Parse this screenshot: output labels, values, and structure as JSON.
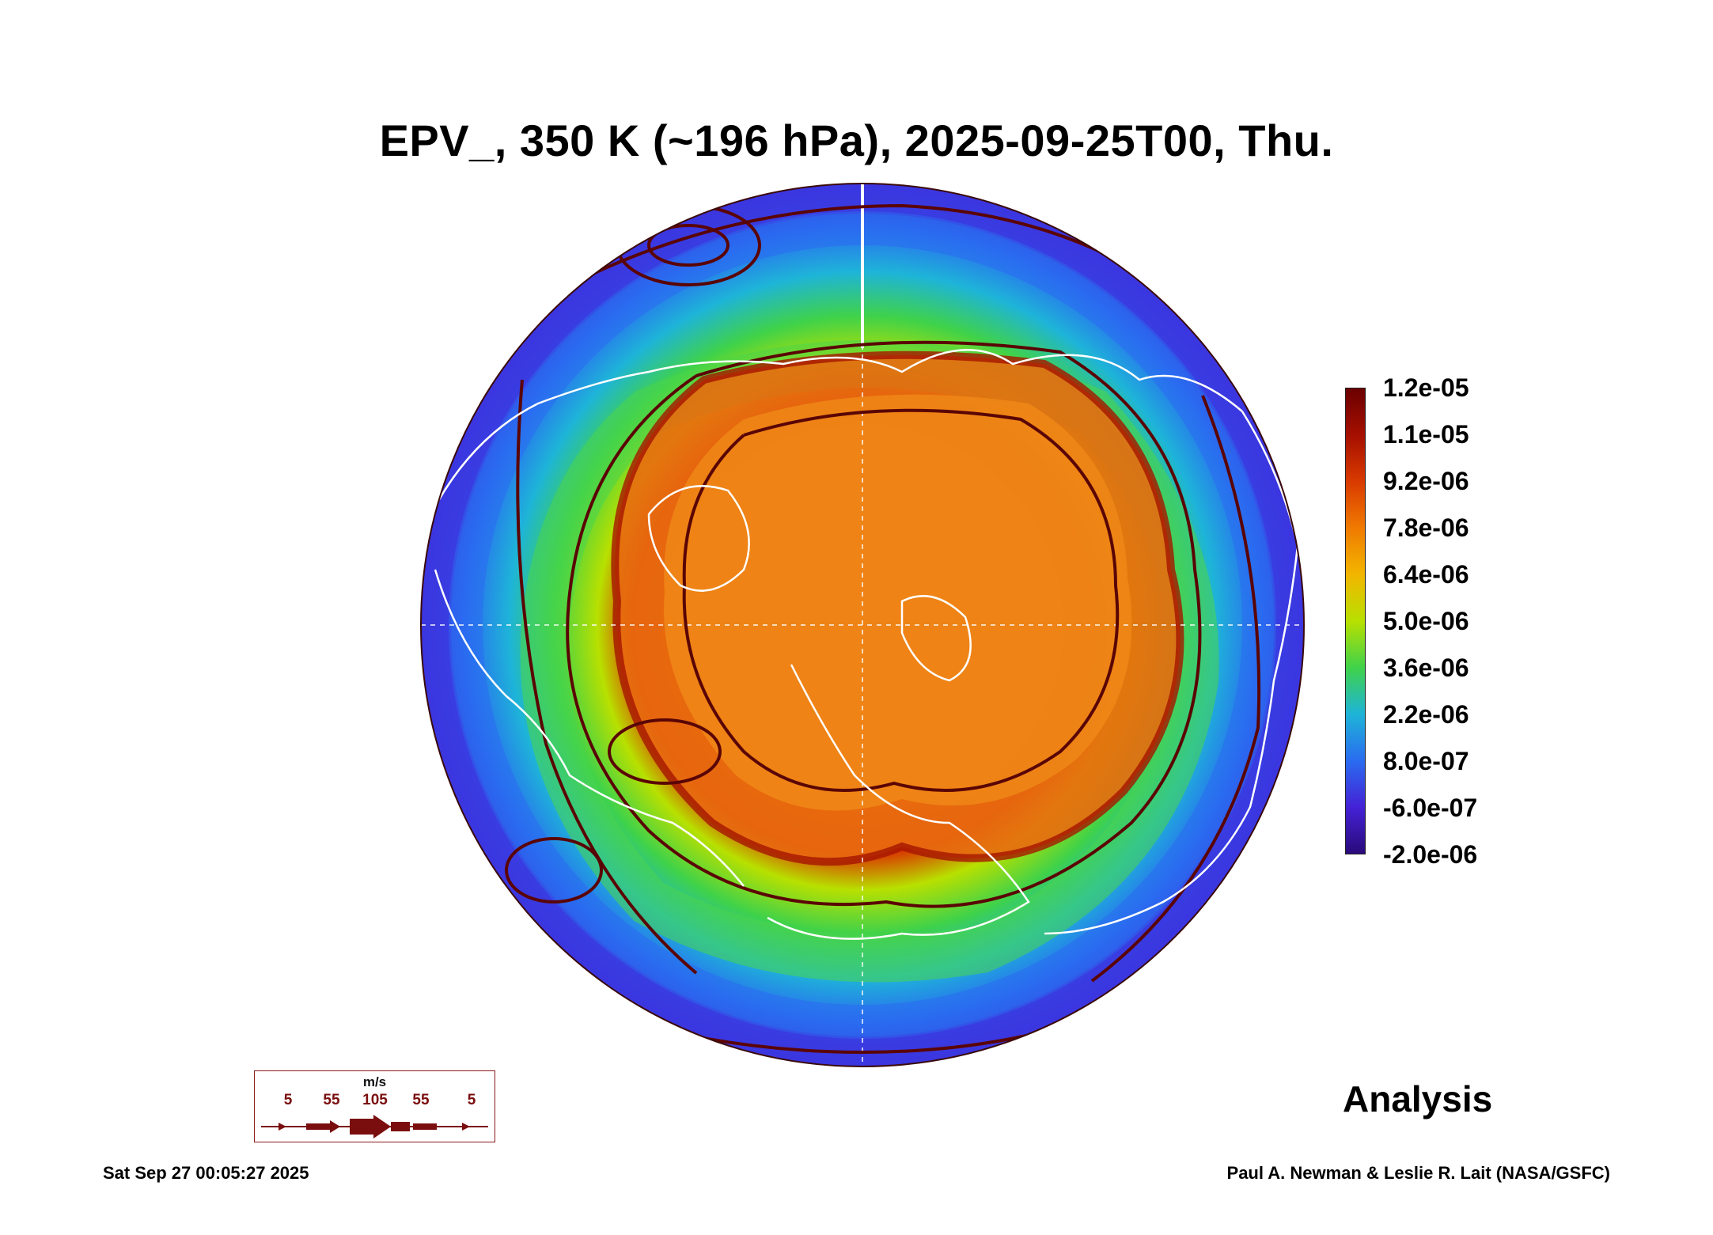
{
  "title": "EPV_, 350 K (~196 hPa), 2025-09-25T00, Thu.",
  "colorbar": {
    "labels": [
      "1.2e-05",
      "1.1e-05",
      "9.2e-06",
      "7.8e-06",
      "6.4e-06",
      "5.0e-06",
      "3.6e-06",
      "2.2e-06",
      "8.0e-07",
      "-6.0e-07",
      "-2.0e-06"
    ],
    "colors": [
      "#6a0000",
      "#a50f00",
      "#d93a00",
      "#f07a00",
      "#f2b600",
      "#b8e000",
      "#3fd24a",
      "#1eb4d8",
      "#2a6cf0",
      "#4422d6",
      "#2a0a7a"
    ]
  },
  "map": {
    "projection": "north-polar-orthographic",
    "coastline_color": "#ffffff",
    "streamline_color": "#5a0505"
  },
  "wind_legend": {
    "unit": "m/s",
    "values": [
      "5",
      "55",
      "105",
      "55",
      "5"
    ]
  },
  "analysis_label": "Analysis",
  "footer": {
    "timestamp": "Sat Sep 27 00:05:27 2025",
    "credit": "Paul A. Newman & Leslie R. Lait (NASA/GSFC)"
  }
}
